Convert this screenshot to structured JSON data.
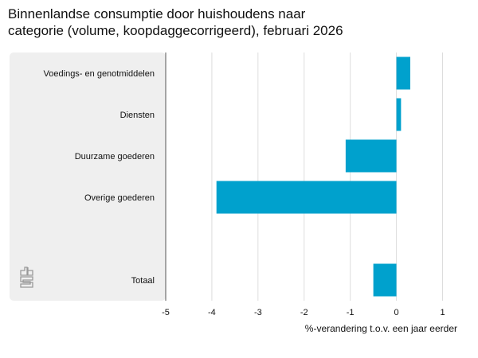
{
  "chart_data": {
    "type": "bar",
    "orientation": "horizontal",
    "title": "Binnenlandse consumptie door huishoudens naar\ncategorie (volume, koopdaggecorrigeerd), februari 2026",
    "categories": [
      "Voedings- en genotmiddelen",
      "Diensten",
      "Duurzame goederen",
      "Overige goederen",
      "",
      "Totaal"
    ],
    "values": [
      0.3,
      0.1,
      -1.1,
      -3.9,
      null,
      -0.5
    ],
    "xlabel": "%-verandering t.o.v. een jaar eerder",
    "ylabel": "",
    "xlim": [
      -5,
      1
    ],
    "xticks": [
      -5,
      -4,
      -3,
      -2,
      -1,
      0,
      1
    ],
    "grid": true,
    "bar_color": "#00a1cd",
    "logo_text": "cbs"
  }
}
